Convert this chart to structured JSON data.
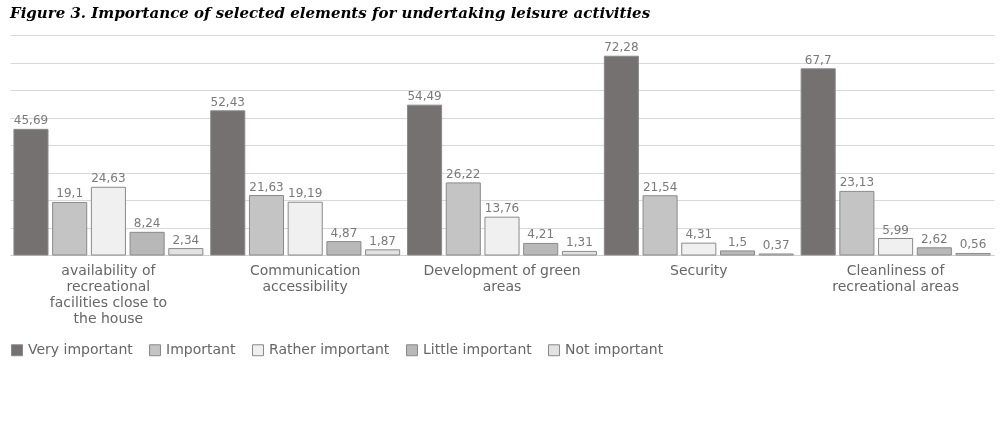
{
  "chart_data": {
    "type": "bar",
    "title": "Figure 3. Importance of selected elements for undertaking leisure activities",
    "categories": [
      "availability of recreational facilities close to the house",
      "Communication accessibility",
      "Development of green areas",
      "Security",
      "Cleanliness of recreational areas"
    ],
    "series": [
      {
        "name": "Very important",
        "color": "#757170",
        "values": [
          45.69,
          52.43,
          54.49,
          72.28,
          67.7
        ],
        "value_labels": [
          "45,69",
          "52,43",
          "54,49",
          "72,28",
          "67,7"
        ]
      },
      {
        "name": "Important",
        "color": "#c4c4c4",
        "values": [
          19.1,
          21.63,
          26.22,
          21.54,
          23.13
        ],
        "value_labels": [
          "19,1",
          "21,63",
          "26,22",
          "21,54",
          "23,13"
        ]
      },
      {
        "name": "Rather important",
        "color": "#f0f0f0",
        "values": [
          24.63,
          19.19,
          13.76,
          4.31,
          5.99
        ],
        "value_labels": [
          "24,63",
          "19,19",
          "13,76",
          "4,31",
          "5,99"
        ]
      },
      {
        "name": "Little important",
        "color": "#b8b8b8",
        "values": [
          8.24,
          4.87,
          4.21,
          1.5,
          2.62
        ],
        "value_labels": [
          "8,24",
          "4,87",
          "4,21",
          "1,5",
          "2,62"
        ]
      },
      {
        "name": "Not important",
        "color": "#e2e2e2",
        "values": [
          2.34,
          1.87,
          1.31,
          0.37,
          0.56
        ],
        "value_labels": [
          "2,34",
          "1,87",
          "1,31",
          "0,37",
          "0,56"
        ]
      }
    ],
    "ylim": [
      0,
      80
    ],
    "grid": "y",
    "legend": "bottom",
    "tick_labels": "x"
  }
}
